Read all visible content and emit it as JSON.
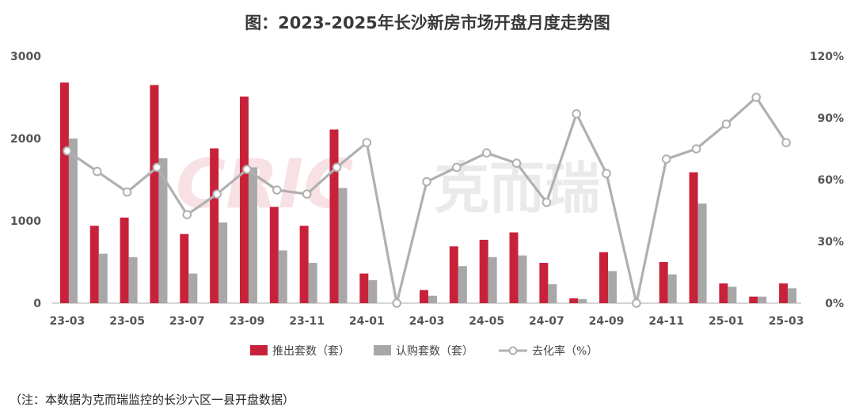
{
  "chart_data": {
    "type": "bar",
    "title": "图：2023-2025年长沙新房市场开盘月度走势图",
    "note": "（注：本数据为克而瑞监控的长沙六区一县开盘数据）",
    "watermark": {
      "latin": "CRIC",
      "cjk": "克而瑞"
    },
    "x_labels": [
      "23-03",
      "23-05",
      "23-07",
      "23-09",
      "23-11",
      "24-01",
      "24-03",
      "24-05",
      "24-07",
      "24-09",
      "24-11",
      "25-01",
      "25-03"
    ],
    "x": [
      "23-03",
      "23-04",
      "23-05",
      "23-06",
      "23-07",
      "23-08",
      "23-09",
      "23-10",
      "23-11",
      "23-12",
      "24-01",
      "24-02",
      "24-03",
      "24-04",
      "24-05",
      "24-06",
      "24-07",
      "24-08",
      "24-09",
      "24-10",
      "24-11",
      "24-12",
      "25-01",
      "25-02",
      "25-03"
    ],
    "y_left": {
      "ylim": [
        0,
        3000
      ],
      "ticks": [
        "0",
        "1000",
        "2000",
        "3000"
      ],
      "tick_values": [
        0,
        1000,
        2000,
        3000
      ]
    },
    "y_right": {
      "ylim": [
        0,
        120
      ],
      "ticks": [
        "0%",
        "30%",
        "60%",
        "90%",
        "120%"
      ],
      "tick_values": [
        0,
        30,
        60,
        90,
        120
      ]
    },
    "series": [
      {
        "name": "推出套数（套）",
        "kind": "bar",
        "axis": "left",
        "color": "#c8223b",
        "values": [
          2680,
          940,
          1040,
          2650,
          840,
          1880,
          2510,
          1170,
          940,
          2110,
          360,
          0,
          160,
          690,
          770,
          860,
          490,
          60,
          620,
          0,
          500,
          1590,
          240,
          80,
          240
        ]
      },
      {
        "name": "认购套数（套）",
        "kind": "bar",
        "axis": "left",
        "color": "#a8a8a8",
        "values": [
          2000,
          600,
          560,
          1760,
          360,
          980,
          1650,
          640,
          490,
          1400,
          280,
          0,
          90,
          450,
          560,
          580,
          230,
          50,
          390,
          0,
          350,
          1210,
          200,
          80,
          180
        ]
      },
      {
        "name": "去化率（%）",
        "kind": "line",
        "axis": "right",
        "color": "#b0b0b0",
        "values": [
          74,
          64,
          54,
          66,
          43,
          53,
          65,
          55,
          53,
          66,
          78,
          0,
          59,
          66,
          73,
          68,
          49,
          92,
          63,
          0,
          70,
          75,
          87,
          100,
          78
        ]
      }
    ],
    "legend_position": "bottom",
    "grid": false
  }
}
